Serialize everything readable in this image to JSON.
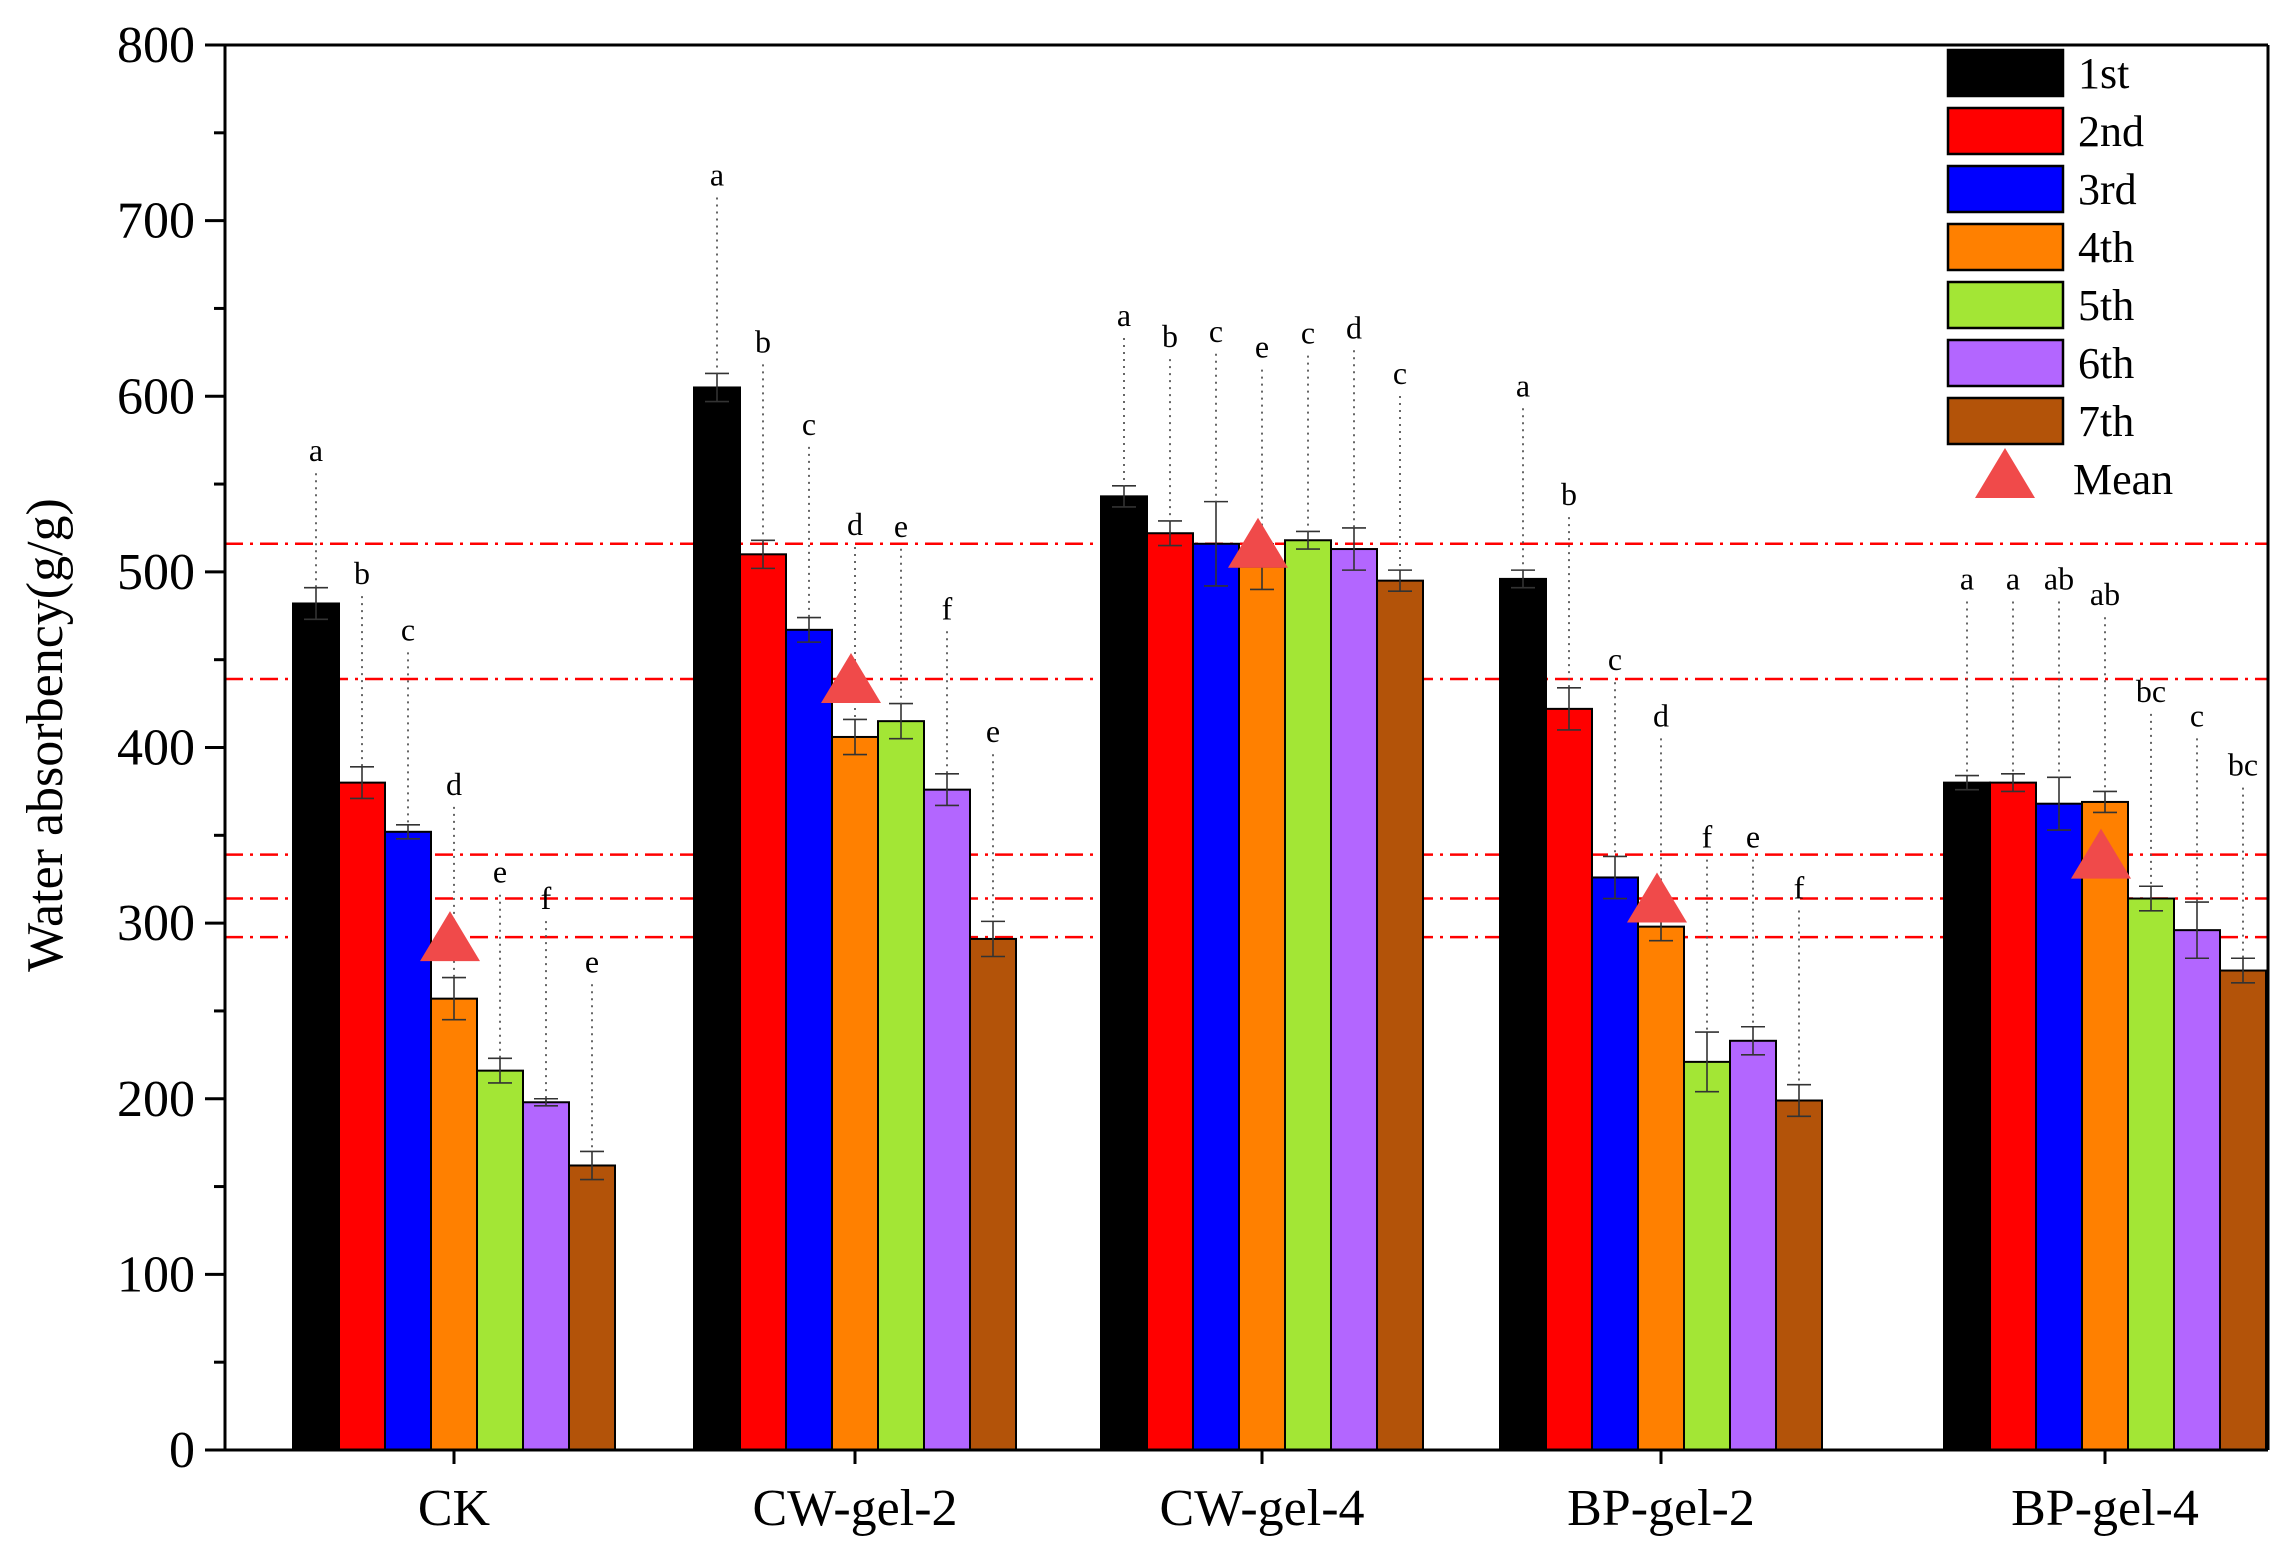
{
  "chart_data": {
    "type": "bar",
    "title": "",
    "xlabel": "",
    "ylabel": "Water absorbency(g/g)",
    "ylim": [
      0,
      800
    ],
    "yticks": [
      0,
      100,
      200,
      300,
      400,
      500,
      600,
      700,
      800
    ],
    "categories": [
      "CK",
      "CW-gel-2",
      "CW-gel-4",
      "BP-gel-2",
      "BP-gel-4"
    ],
    "legend_position": "top-right",
    "mean_label": "Mean",
    "series": [
      {
        "name": "1st",
        "color": "#000000",
        "values": [
          482,
          605,
          543,
          496,
          380
        ],
        "errors": [
          9,
          8,
          6,
          5,
          4
        ],
        "labels": [
          "a",
          "a",
          "a",
          "a",
          "a"
        ]
      },
      {
        "name": "2nd",
        "color": "#ff0000",
        "values": [
          380,
          510,
          522,
          422,
          380
        ],
        "errors": [
          9,
          8,
          7,
          12,
          5
        ],
        "labels": [
          "b",
          "b",
          "b",
          "b",
          "a"
        ]
      },
      {
        "name": "3rd",
        "color": "#0000ff",
        "values": [
          352,
          467,
          516,
          326,
          368
        ],
        "errors": [
          4,
          7,
          24,
          12,
          15
        ],
        "labels": [
          "c",
          "c",
          "c",
          "c",
          "ab"
        ]
      },
      {
        "name": "4th",
        "color": "#ff8000",
        "values": [
          257,
          406,
          503,
          298,
          369
        ],
        "errors": [
          12,
          10,
          13,
          8,
          6
        ],
        "labels": [
          "d",
          "d",
          "e",
          "d",
          "ab"
        ]
      },
      {
        "name": "5th",
        "color": "#a3e635",
        "values": [
          216,
          415,
          518,
          221,
          314
        ],
        "errors": [
          7,
          10,
          5,
          17,
          7
        ],
        "labels": [
          "e",
          "e",
          "c",
          "f",
          "bc"
        ]
      },
      {
        "name": "6th",
        "color": "#b366ff",
        "values": [
          198,
          376,
          513,
          233,
          296
        ],
        "errors": [
          2,
          9,
          12,
          8,
          16
        ],
        "labels": [
          "f",
          "f",
          "d",
          "e",
          "c"
        ]
      },
      {
        "name": "7th",
        "color": "#b35309",
        "values": [
          162,
          291,
          495,
          199,
          273
        ],
        "errors": [
          8,
          10,
          6,
          9,
          7
        ],
        "labels": [
          "e",
          "e",
          "c",
          "f",
          "bc"
        ]
      }
    ],
    "label_values": [
      [
        563,
        720,
        640,
        600,
        490
      ],
      [
        493,
        625,
        628,
        538,
        490
      ],
      [
        461,
        578,
        631,
        444,
        490
      ],
      [
        373,
        521,
        622,
        412,
        481
      ],
      [
        323,
        520,
        630,
        343,
        426
      ],
      [
        308,
        473,
        633,
        343,
        412
      ],
      [
        272,
        403,
        607,
        314,
        384
      ]
    ],
    "means": [
      292,
      439,
      516,
      314,
      339
    ]
  }
}
